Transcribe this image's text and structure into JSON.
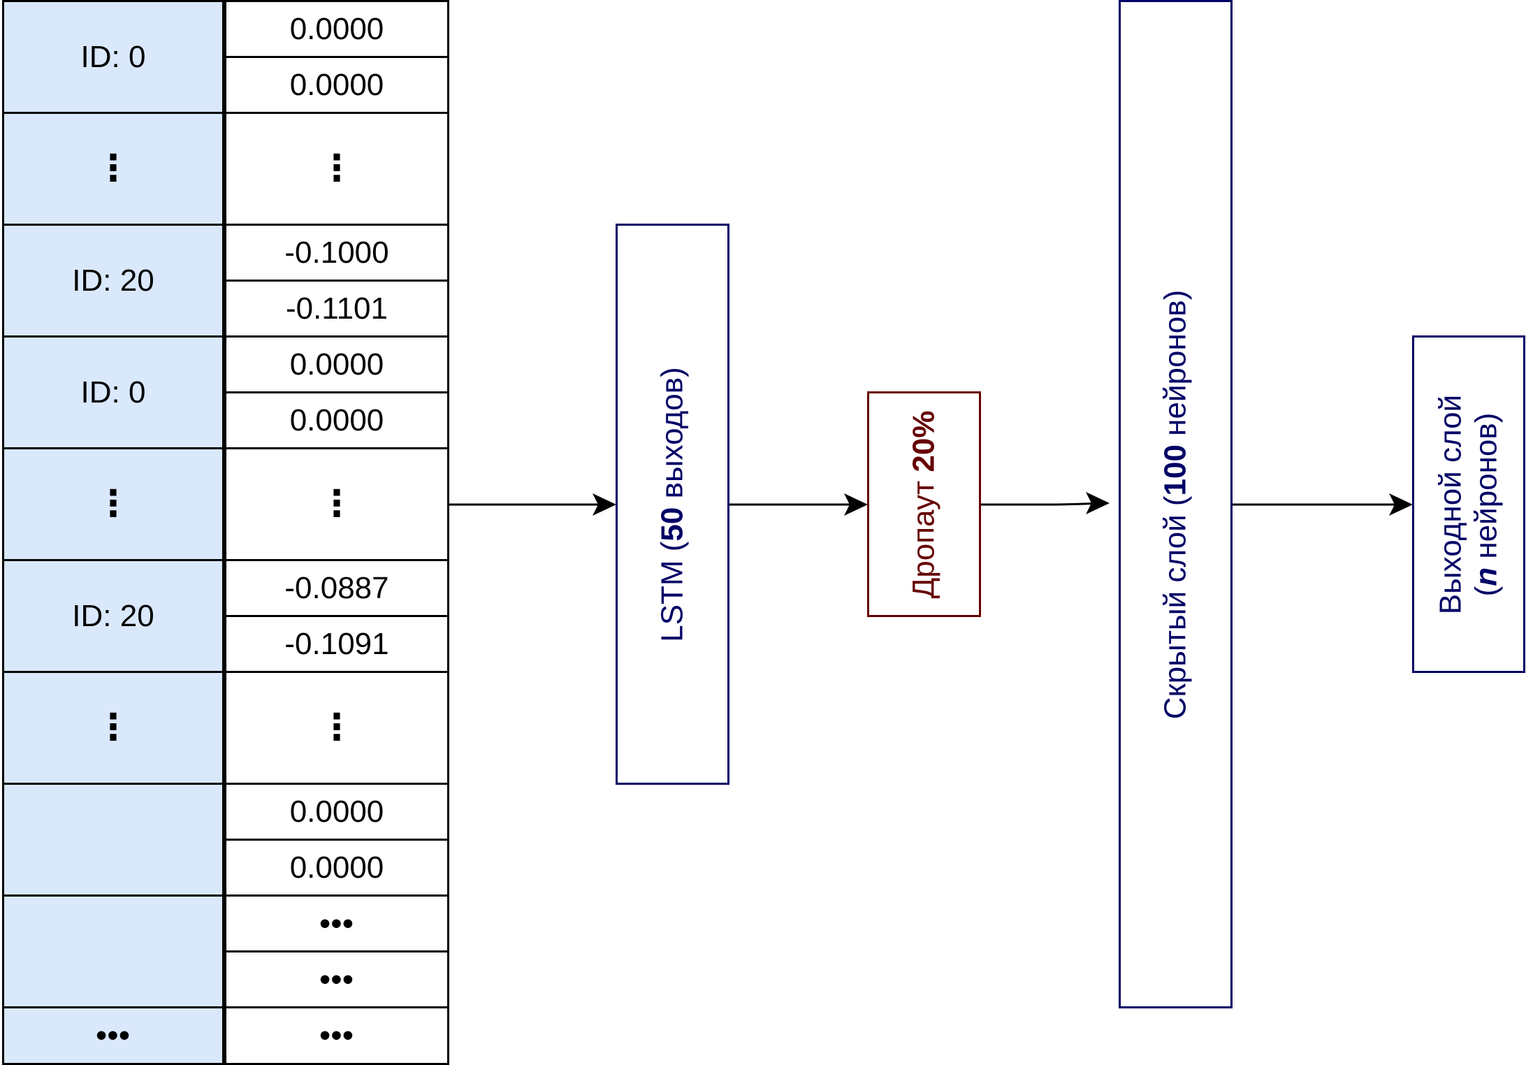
{
  "input_table": {
    "rows": [
      {
        "id": "ID: 0",
        "values": [
          "0.0000",
          "0.0000"
        ]
      },
      {
        "id": "⋮",
        "values": [
          "⋮"
        ]
      },
      {
        "id": "ID: 20",
        "values": [
          "-0.1000",
          "-0.1101"
        ]
      },
      {
        "id": "ID: 0",
        "values": [
          "0.0000",
          "0.0000"
        ]
      },
      {
        "id": "⋮",
        "values": [
          "⋮"
        ]
      },
      {
        "id": "ID: 20",
        "values": [
          "-0.0887",
          "-0.1091"
        ]
      },
      {
        "id": "⋮",
        "values": [
          "⋮"
        ]
      },
      {
        "id": "",
        "values": [
          "0.0000",
          "0.0000"
        ]
      },
      {
        "id": "",
        "values": [
          "•••",
          "•••"
        ]
      },
      {
        "id": "•••",
        "values": [
          "•••"
        ]
      }
    ]
  },
  "layers": {
    "lstm": {
      "prefix": "LSTM (",
      "bold": "50",
      "suffix": " выходов)"
    },
    "dropout": {
      "prefix": "Дропаут ",
      "bold": "20%"
    },
    "hidden": {
      "prefix": "Скрытый слой (",
      "bold": "100",
      "suffix": " нейронов)"
    },
    "output": {
      "line1": "Выходной слой",
      "line2_prefix": "(",
      "line2_bold": "n",
      "line2_suffix": " нейронов)"
    }
  },
  "colors": {
    "id_fill": "#dae8fc",
    "layer_stroke": "#000066",
    "dropout_stroke": "#660000",
    "arrow": "#000000"
  }
}
